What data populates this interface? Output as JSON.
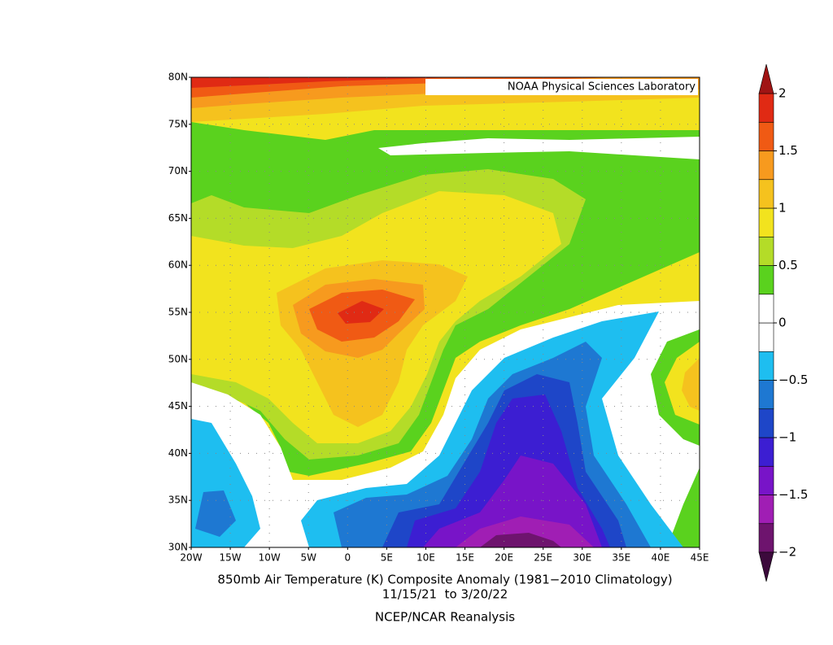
{
  "chart_data": {
    "type": "contour_map",
    "title": "850mb Air Temperature (K) Composite Anomaly (1981−2010 Climatology)",
    "subtitle": "11/15/21  to 3/20/22",
    "source": "NCEP/NCAR Reanalysis",
    "watermark": "NOAA Physical Sciences Laboratory",
    "xlim": [
      -20,
      45
    ],
    "ylim": [
      30,
      80
    ],
    "xticks": [
      {
        "value": -20,
        "label": "20W"
      },
      {
        "value": -15,
        "label": "15W"
      },
      {
        "value": -10,
        "label": "10W"
      },
      {
        "value": -5,
        "label": "5W"
      },
      0,
      {
        "value": 5,
        "label": "5E"
      },
      {
        "value": 10,
        "label": "10E"
      },
      {
        "value": 15,
        "label": "15E"
      },
      {
        "value": 20,
        "label": "20E"
      },
      {
        "value": 25,
        "label": "25E"
      },
      {
        "value": 30,
        "label": "30E"
      },
      {
        "value": 35,
        "label": "35E"
      },
      {
        "value": 40,
        "label": "40E"
      },
      {
        "value": 45,
        "label": "45E"
      }
    ],
    "yticks": [
      {
        "value": 30,
        "label": "30N"
      },
      {
        "value": 35,
        "label": "35N"
      },
      {
        "value": 40,
        "label": "40N"
      },
      {
        "value": 45,
        "label": "45N"
      },
      {
        "value": 50,
        "label": "50N"
      },
      {
        "value": 55,
        "label": "55N"
      },
      {
        "value": 60,
        "label": "60N"
      },
      {
        "value": 65,
        "label": "65N"
      },
      {
        "value": 70,
        "label": "70N"
      },
      {
        "value": 75,
        "label": "75N"
      },
      {
        "value": 80,
        "label": "80N"
      }
    ],
    "grid": true,
    "colorbar": {
      "clim": [
        -2,
        2
      ],
      "ticks": [
        {
          "value": -2,
          "label": "−2"
        },
        {
          "value": -1.5,
          "label": "−1.5"
        },
        {
          "value": -1,
          "label": "−1"
        },
        {
          "value": -0.5,
          "label": "−0.5"
        },
        0,
        0.5,
        1,
        1.5,
        2
      ],
      "colors": [
        "#6e146e",
        "#a01eb4",
        "#7814c8",
        "#3c1ed2",
        "#1e46c8",
        "#1e78d2",
        "#1ebef0",
        "#ffffff",
        "#ffffff",
        "#5ad21e",
        "#b4dc28",
        "#f2e31e",
        "#f5c21e",
        "#f79a1e",
        "#f05a14",
        "#e02a14"
      ],
      "under_color": "#3c0a3c",
      "over_color": "#a01414"
    }
  }
}
